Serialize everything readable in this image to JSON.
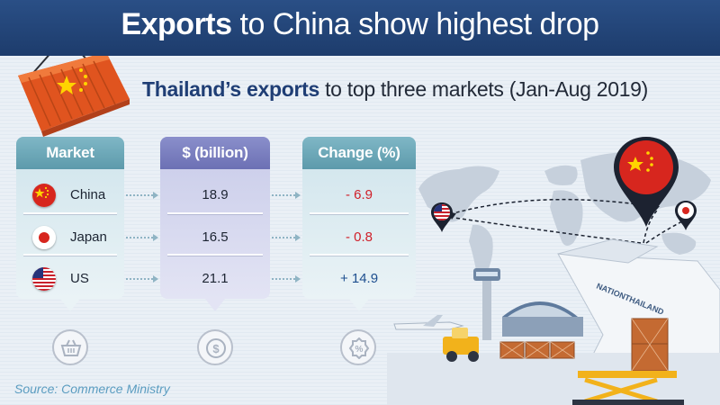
{
  "header": {
    "title_bold": "Exports",
    "title_rest": "to China show highest drop"
  },
  "subtitle": {
    "bold": "Thailand’s exports",
    "rest": "to top three markets (Jan-Aug 2019)"
  },
  "chart_data": {
    "type": "table",
    "title": "Thailand’s exports to top three markets (Jan-Aug 2019)",
    "columns": [
      "Market",
      "$ (billion)",
      "Change (%)"
    ],
    "rows": [
      {
        "market": "China",
        "usd_billion": "18.9",
        "change": "- 6.9",
        "change_value": -6.9
      },
      {
        "market": "Japan",
        "usd_billion": "16.5",
        "change": "- 0.8",
        "change_value": -0.8
      },
      {
        "market": "US",
        "usd_billion": "21.1",
        "change": "+ 14.9",
        "change_value": 14.9
      }
    ]
  },
  "icons": {
    "market": "basket-icon",
    "usd": "dollar-coin-icon",
    "change": "percent-badge-icon"
  },
  "illustration": {
    "plane_text": "NATIONTHAILAND"
  },
  "source": "Source: Commerce Ministry",
  "colors": {
    "header_bg": "#1d3c6c",
    "negative": "#d0202a",
    "positive": "#1e4f8f",
    "market_header": "#5d9aab",
    "usd_header": "#6c70b4",
    "source": "#5a9cc0"
  }
}
